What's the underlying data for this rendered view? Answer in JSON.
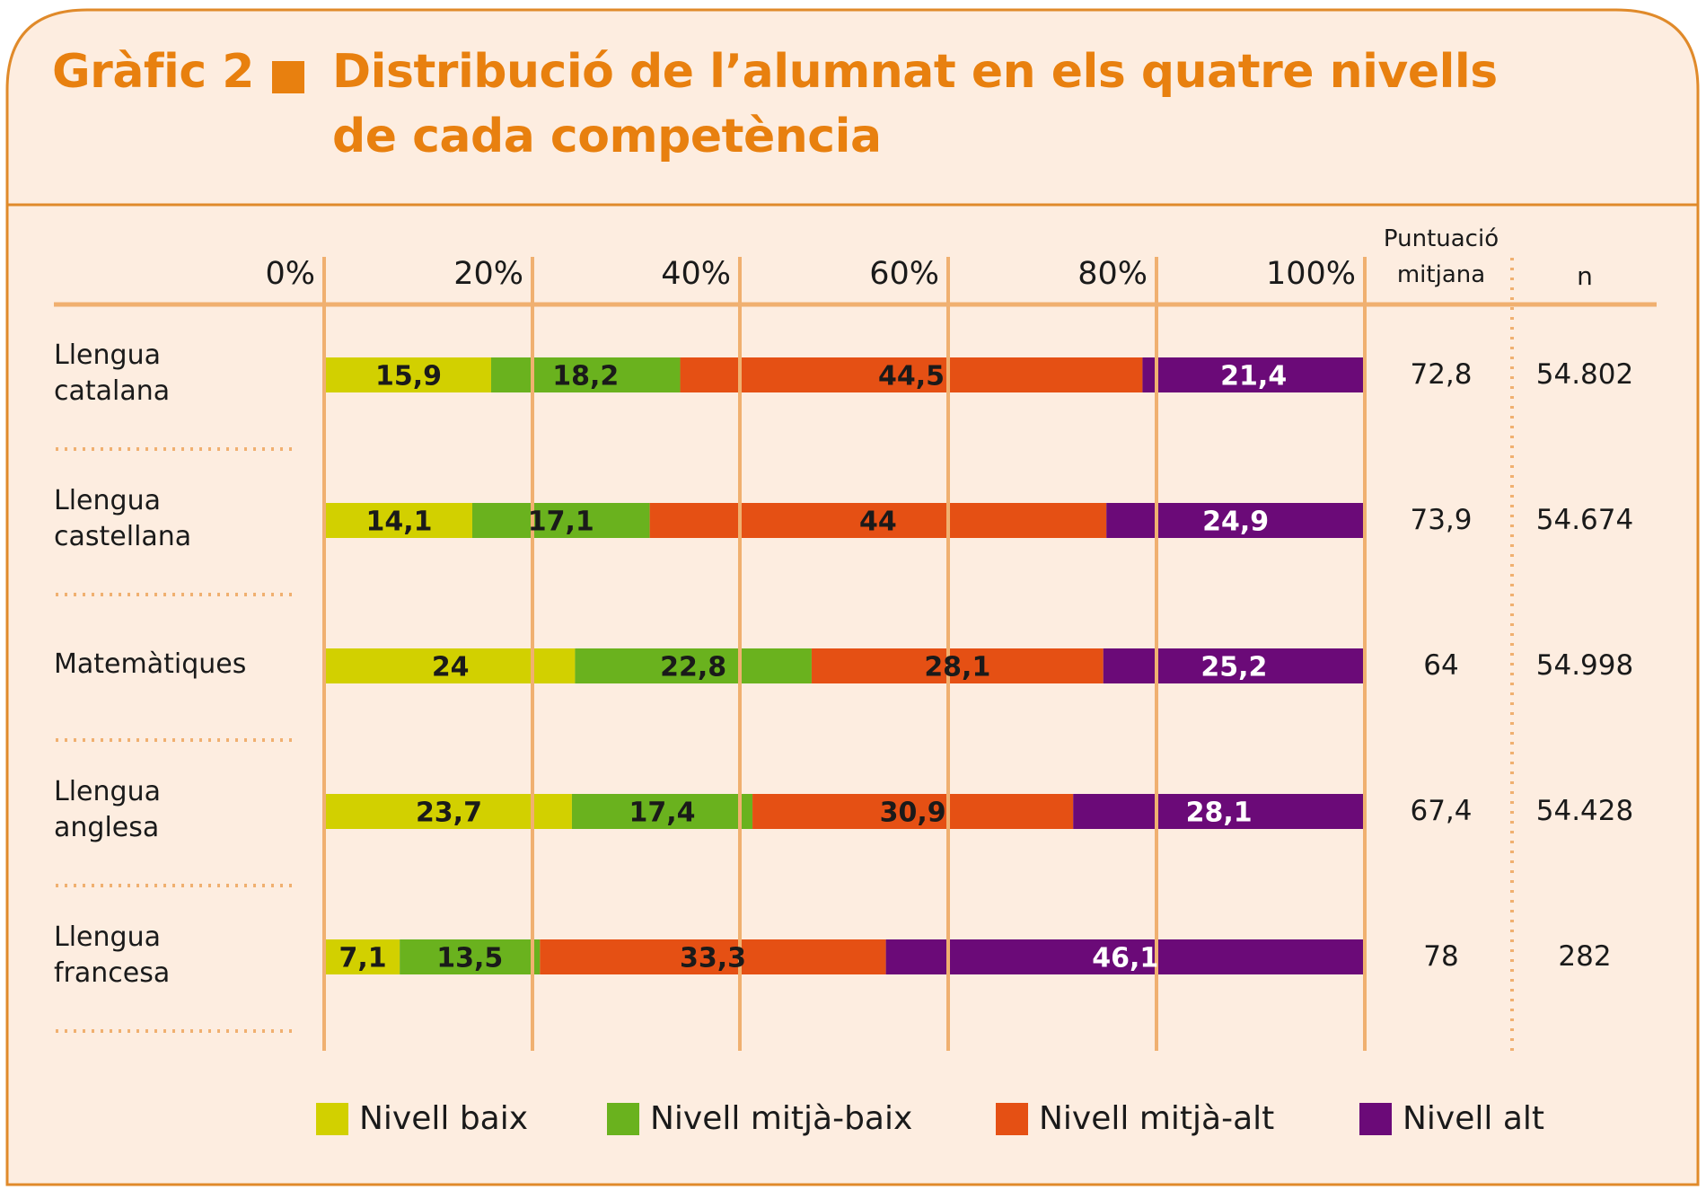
{
  "title": {
    "prefix": "Gràfic 2",
    "line1": "Distribució de l’alumnat en els quatre nivells",
    "line2": "de cada competència"
  },
  "columns": {
    "score_line1": "Puntuació",
    "score_line2": "mitjana",
    "n": "n"
  },
  "colors": {
    "background": "#FDEDE0",
    "border": "#E08A2A",
    "title": "#E8800F",
    "grid": "#F0B070"
  },
  "chart_data": {
    "type": "bar",
    "orientation": "horizontal-stacked-100",
    "title": "Gràfic 2 ■ Distribució de l’alumnat en els quatre nivells de cada competència",
    "xlabel": "",
    "ylabel": "",
    "xlim": [
      0,
      100
    ],
    "x_ticks": [
      "0%",
      "20%",
      "40%",
      "60%",
      "80%",
      "100%"
    ],
    "grid": true,
    "legend_position": "bottom",
    "categories": [
      "Llengua catalana",
      "Llengua castellana",
      "Matemàtiques",
      "Llengua anglesa",
      "Llengua francesa"
    ],
    "category_lines": [
      [
        "Llengua",
        "catalana"
      ],
      [
        "Llengua",
        "castellana"
      ],
      [
        "Matemàtiques"
      ],
      [
        "Llengua",
        "anglesa"
      ],
      [
        "Llengua",
        "francesa"
      ]
    ],
    "series": [
      {
        "name": "Nivell baix",
        "color": "#D2D000",
        "label_color": "#1a1a1a",
        "values": [
          15.9,
          14.1,
          24,
          23.7,
          7.1
        ],
        "labels": [
          "15,9",
          "14,1",
          "24",
          "23,7",
          "7,1"
        ]
      },
      {
        "name": "Nivell mitjà-baix",
        "color": "#6AB21E",
        "label_color": "#1a1a1a",
        "values": [
          18.2,
          17.1,
          22.8,
          17.4,
          13.5
        ],
        "labels": [
          "18,2",
          "17,1",
          "22,8",
          "17,4",
          "13,5"
        ]
      },
      {
        "name": "Nivell mitjà-alt",
        "color": "#E55014",
        "label_color": "#1a1a1a",
        "values": [
          44.5,
          44,
          28.1,
          30.9,
          33.3
        ],
        "labels": [
          "44,5",
          "44",
          "28,1",
          "30,9",
          "33,3"
        ]
      },
      {
        "name": "Nivell alt",
        "color": "#6B0A78",
        "label_color": "#ffffff",
        "values": [
          21.4,
          24.9,
          25.2,
          28.1,
          46.1
        ],
        "labels": [
          "21,4",
          "24,9",
          "25,2",
          "28,1",
          "46,1"
        ]
      }
    ],
    "table": {
      "puntuacio_mitjana": [
        "72,8",
        "73,9",
        "64",
        "67,4",
        "78"
      ],
      "n": [
        "54.802",
        "54.674",
        "54.998",
        "54.428",
        "282"
      ]
    }
  }
}
